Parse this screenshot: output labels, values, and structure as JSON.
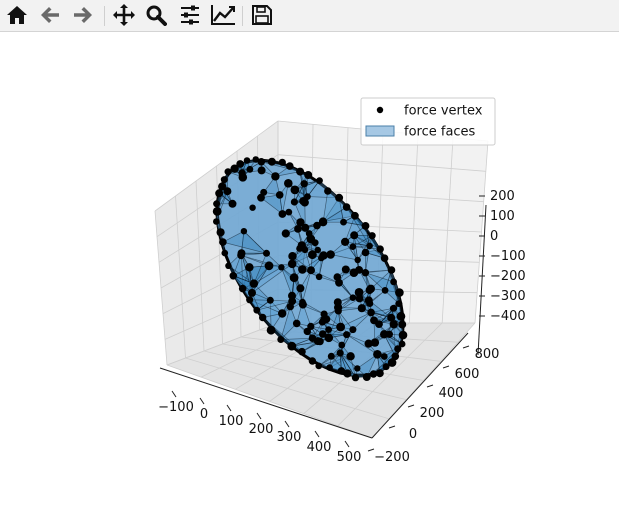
{
  "toolbar": {
    "buttons": [
      {
        "icon": "home-icon",
        "label": "Home"
      },
      {
        "icon": "back-icon",
        "label": "Back"
      },
      {
        "icon": "forward-icon",
        "label": "Forward"
      },
      {
        "icon": "pan-icon",
        "label": "Pan"
      },
      {
        "icon": "zoom-icon",
        "label": "Zoom"
      },
      {
        "icon": "subplots-icon",
        "label": "Configure subplots"
      },
      {
        "icon": "axes-icon",
        "label": "Edit axis"
      },
      {
        "icon": "save-icon",
        "label": "Save"
      }
    ]
  },
  "chart_data": {
    "type": "scatter",
    "projection": "3d",
    "title": "",
    "x_ticks": [
      "−100",
      "0",
      "100",
      "200",
      "300",
      "400",
      "500"
    ],
    "y_ticks": [
      "−200",
      "0",
      "200",
      "400",
      "600",
      "800"
    ],
    "z_ticks": [
      "−400",
      "−300",
      "−200",
      "−100",
      "0",
      "100",
      "200"
    ],
    "xlim": [
      -150,
      520
    ],
    "ylim": [
      -250,
      880
    ],
    "zlim": [
      -450,
      260
    ],
    "grid": true,
    "legend_position": "upper right",
    "legend": [
      {
        "label": "force vertex",
        "marker": "circle",
        "color": "#000000"
      },
      {
        "label": "force faces",
        "marker": "patch",
        "color": "#a6c8e4"
      }
    ],
    "series": [
      {
        "name": "force vertex",
        "kind": "points",
        "color": "#000000"
      },
      {
        "name": "force faces",
        "kind": "surface",
        "color": "#1f77b4"
      }
    ]
  }
}
